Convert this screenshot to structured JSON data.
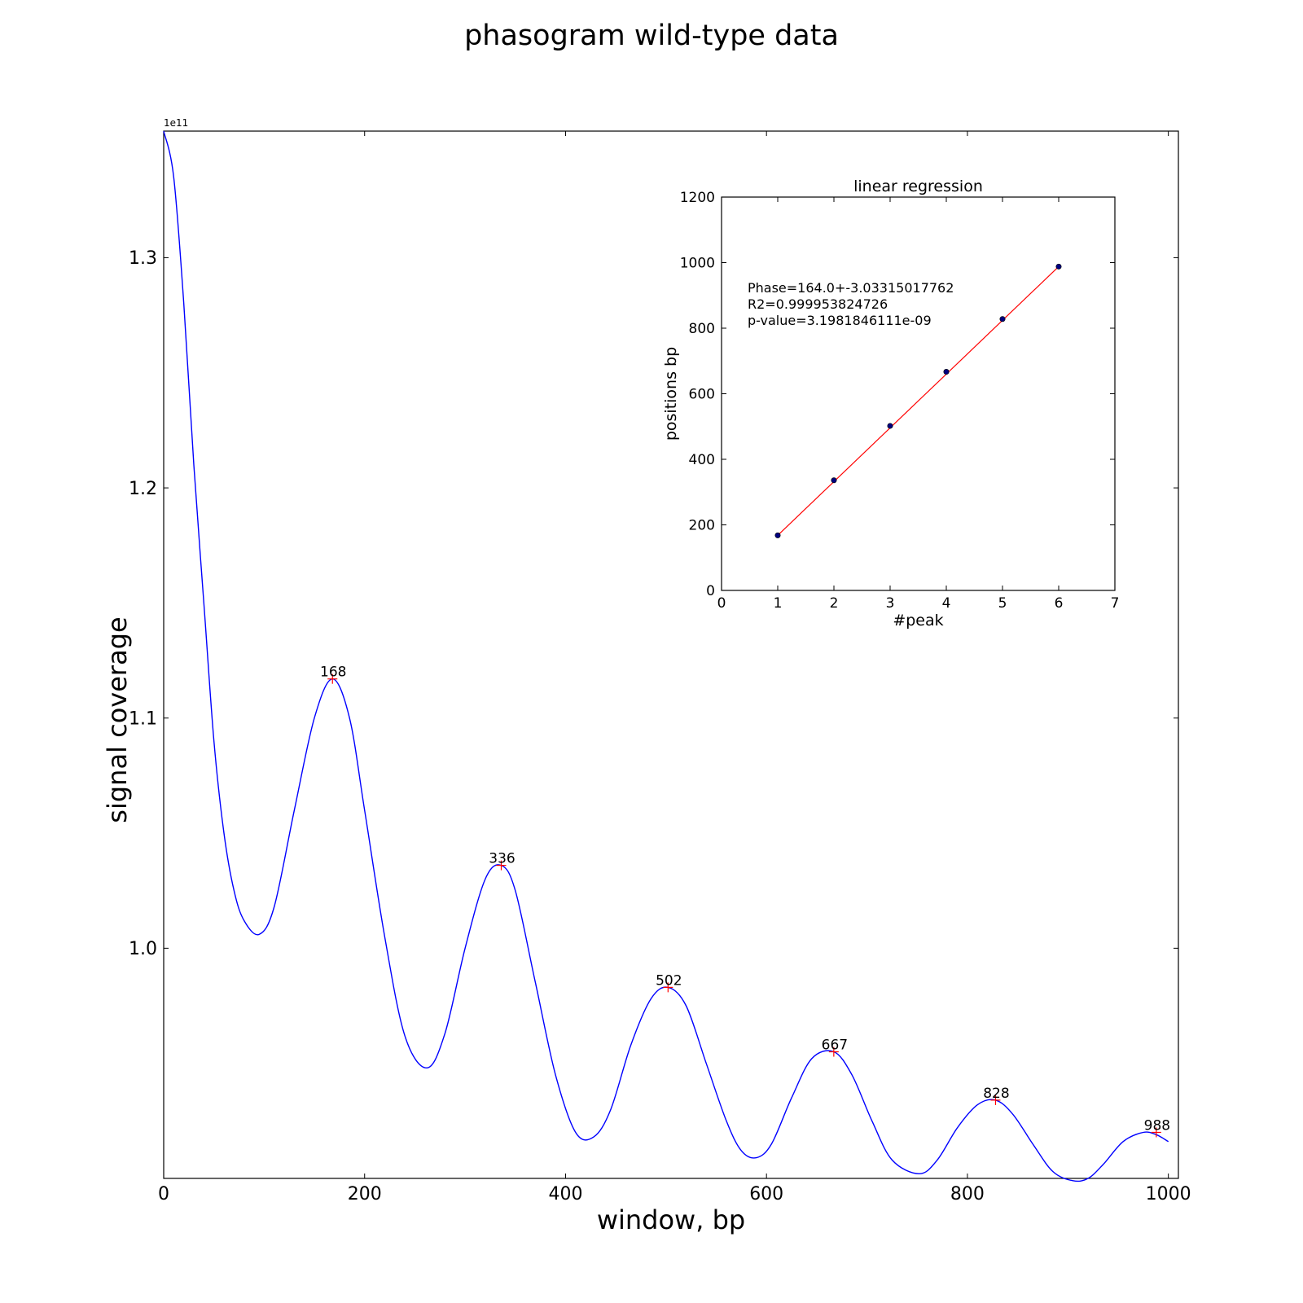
{
  "title": "phasogram wild-type data",
  "chart_data": [
    {
      "type": "line",
      "xlabel": "window, bp",
      "ylabel": "signal coverage",
      "y_offset_label": "1e11",
      "xlim": [
        0,
        1010
      ],
      "ylim": [
        0.9,
        1.355
      ],
      "x_ticks": [
        0,
        200,
        400,
        600,
        800,
        1000
      ],
      "y_ticks": [
        1.0,
        1.1,
        1.2,
        1.3
      ],
      "x_tick_labels": [
        "0",
        "200",
        "400",
        "600",
        "800",
        "1000"
      ],
      "y_tick_labels": [
        "1.0",
        "1.1",
        "1.2",
        "1.3"
      ],
      "series": [
        {
          "color": "#0000ff",
          "x": [
            0,
            10,
            20,
            30,
            40,
            50,
            60,
            70,
            80,
            95,
            110,
            130,
            150,
            168,
            185,
            200,
            220,
            240,
            262,
            280,
            300,
            320,
            336,
            350,
            370,
            390,
            410,
            428,
            445,
            465,
            485,
            502,
            520,
            540,
            560,
            575,
            590,
            605,
            625,
            645,
            667,
            685,
            705,
            725,
            752,
            770,
            790,
            810,
            828,
            845,
            865,
            885,
            905,
            920,
            935,
            955,
            975,
            988,
            1000
          ],
          "y": [
            1.355,
            1.335,
            1.28,
            1.21,
            1.15,
            1.09,
            1.05,
            1.025,
            1.012,
            1.006,
            1.018,
            1.06,
            1.1,
            1.117,
            1.1,
            1.06,
            1.005,
            0.962,
            0.948,
            0.963,
            1.0,
            1.03,
            1.036,
            1.025,
            0.985,
            0.945,
            0.92,
            0.918,
            0.93,
            0.958,
            0.978,
            0.983,
            0.975,
            0.95,
            0.925,
            0.912,
            0.909,
            0.915,
            0.935,
            0.952,
            0.955,
            0.945,
            0.925,
            0.908,
            0.902,
            0.908,
            0.922,
            0.932,
            0.934,
            0.928,
            0.915,
            0.903,
            0.899,
            0.9,
            0.906,
            0.916,
            0.92,
            0.919,
            0.916
          ]
        }
      ],
      "peaks": [
        {
          "x": 168,
          "y": 1.117,
          "label": "168"
        },
        {
          "x": 336,
          "y": 1.036,
          "label": "336"
        },
        {
          "x": 502,
          "y": 0.983,
          "label": "502"
        },
        {
          "x": 667,
          "y": 0.955,
          "label": "667"
        },
        {
          "x": 828,
          "y": 0.934,
          "label": "828"
        },
        {
          "x": 988,
          "y": 0.92,
          "label": "988"
        }
      ],
      "peak_marker_color": "#ff0000"
    },
    {
      "type": "scatter",
      "title": "linear regression",
      "xlabel": "#peak",
      "ylabel": "positions bp",
      "xlim": [
        0,
        7
      ],
      "ylim": [
        0,
        1200
      ],
      "x_ticks": [
        0,
        1,
        2,
        3,
        4,
        5,
        6,
        7
      ],
      "y_ticks": [
        0,
        200,
        400,
        600,
        800,
        1000,
        1200
      ],
      "x_tick_labels": [
        "0",
        "1",
        "2",
        "3",
        "4",
        "5",
        "6",
        "7"
      ],
      "y_tick_labels": [
        "0",
        "200",
        "400",
        "600",
        "800",
        "1000",
        "1200"
      ],
      "points": {
        "x": [
          1,
          2,
          3,
          4,
          5,
          6
        ],
        "y": [
          168,
          336,
          502,
          667,
          828,
          988
        ]
      },
      "point_color": "#000080",
      "fit_line": {
        "x": [
          1,
          6
        ],
        "y": [
          168,
          988
        ],
        "color": "#ff0000"
      },
      "annotation": [
        "Phase=164.0+-3.03315017762",
        "R2=0.999953824726",
        "p-value=3.1981846111e-09"
      ]
    }
  ]
}
